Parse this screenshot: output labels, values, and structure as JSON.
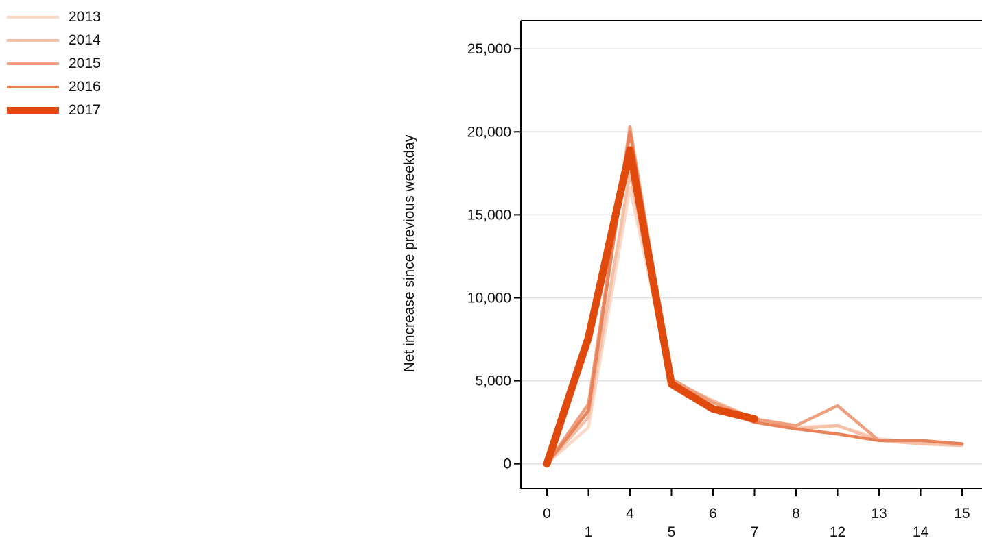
{
  "chart_data": {
    "type": "line",
    "title": "",
    "xlabel": "",
    "ylabel": "Net increase since previous weekday",
    "categories": [
      "0",
      "1",
      "4",
      "5",
      "6",
      "7",
      "8",
      "12",
      "13",
      "14",
      "15"
    ],
    "y_ticks": [
      "0",
      "5,000",
      "10,000",
      "15,000",
      "20,000",
      "25,000"
    ],
    "y_tick_values": [
      0,
      5000,
      10000,
      15000,
      20000,
      25000
    ],
    "ylim": [
      -1500,
      26700
    ],
    "grid": "horizontal",
    "legend_position": "top-left",
    "series": [
      {
        "name": "2013",
        "color": "#fbd9c9",
        "values": [
          0,
          2200,
          16600,
          5000,
          3700,
          2700,
          2200,
          2300,
          1500,
          1300,
          1200
        ]
      },
      {
        "name": "2014",
        "color": "#f6c0a6",
        "values": [
          0,
          2800,
          17500,
          5000,
          3800,
          2700,
          2100,
          2300,
          1400,
          1200,
          1100
        ]
      },
      {
        "name": "2015",
        "color": "#eea07e",
        "values": [
          0,
          3600,
          20300,
          5100,
          3700,
          2700,
          2300,
          3500,
          1400,
          1400,
          1200
        ]
      },
      {
        "name": "2016",
        "color": "#e8825a",
        "values": [
          0,
          3200,
          20000,
          4900,
          3400,
          2500,
          2100,
          1800,
          1400,
          1400,
          1200
        ]
      },
      {
        "name": "2017",
        "color": "#e04a0d",
        "values": [
          0,
          7600,
          18900,
          4800,
          3300,
          2700,
          null,
          null,
          null,
          null,
          null
        ]
      }
    ]
  }
}
